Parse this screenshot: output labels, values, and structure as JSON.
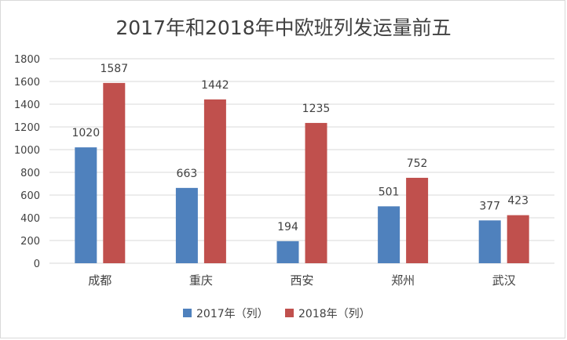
{
  "chart_data": {
    "type": "bar",
    "title": "2017年和2018年中欧班列发运量前五",
    "categories": [
      "成都",
      "重庆",
      "西安",
      "郑州",
      "武汉"
    ],
    "series": [
      {
        "name": "2017年（列）",
        "color": "#4f81bd",
        "values": [
          1020,
          663,
          194,
          501,
          377
        ]
      },
      {
        "name": "2018年（列）",
        "color": "#c0504d",
        "values": [
          1587,
          1442,
          1235,
          752,
          423
        ]
      }
    ],
    "ylim": [
      0,
      1800
    ],
    "yticks": [
      0,
      200,
      400,
      600,
      800,
      1000,
      1200,
      1400,
      1600,
      1800
    ],
    "grid": true,
    "legend_position": "bottom",
    "xlabel": "",
    "ylabel": ""
  }
}
